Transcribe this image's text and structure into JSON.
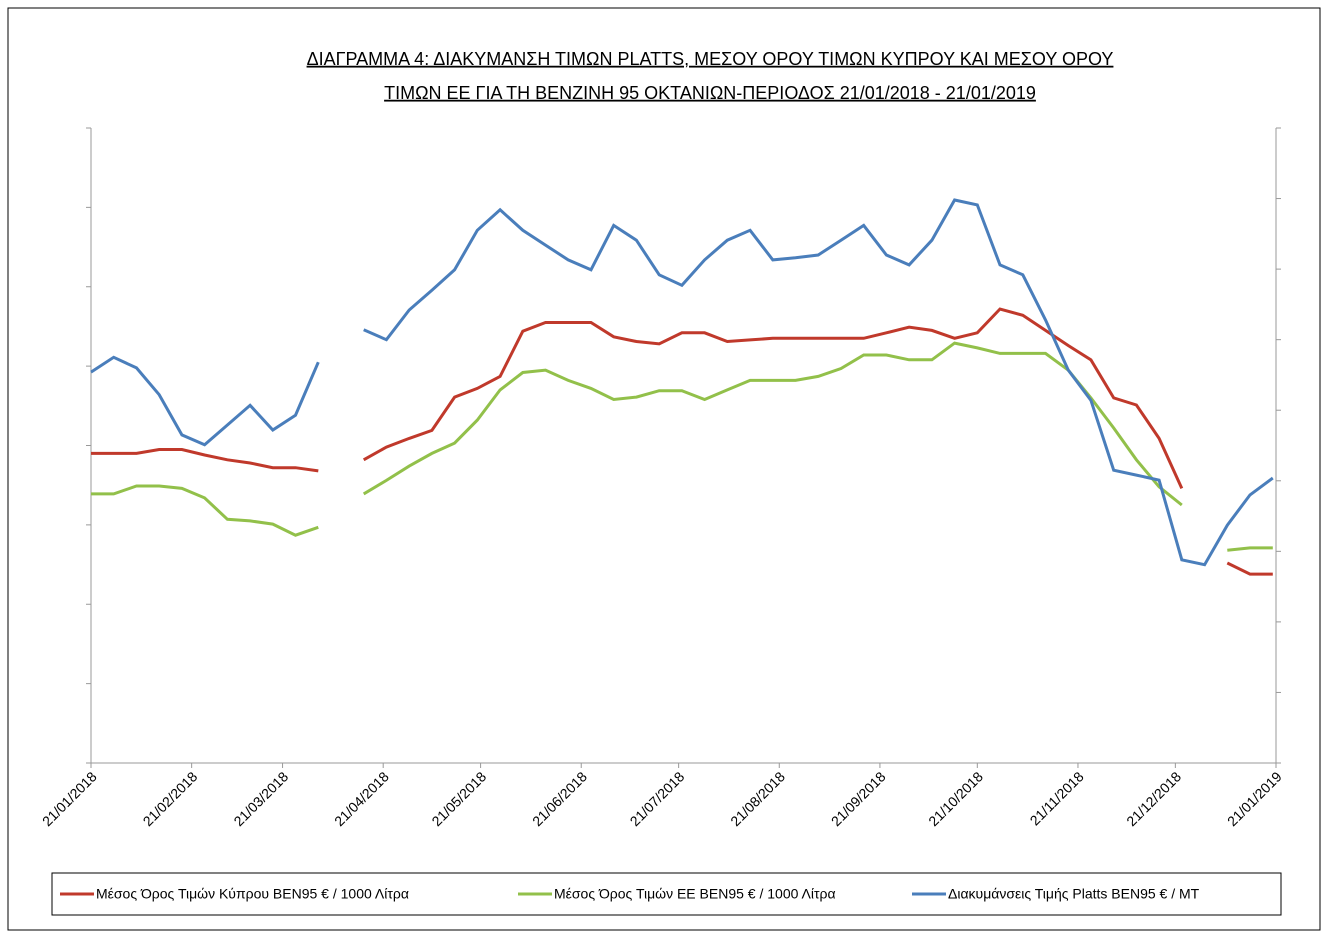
{
  "chart_data": {
    "type": "line",
    "title": [
      "ΔΙΑΓΡΑΜΜΑ 4: ΔΙΑΚΥΜΑΝΣΗ ΤΙΜΩΝ PLATTS, ΜΕΣΟΥ ΟΡΟΥ ΤΙΜΩΝ ΚΥΠΡΟΥ ΚΑΙ ΜΕΣΟΥ ΟΡΟΥ",
      "ΤΙΜΩΝ ΕΕ ΓΙΑ ΤΗ ΒΕΝΖΙΝΗ 95 ΟΚΤΑΝΙΩΝ-ΠΕΡΙΟΔΟΣ 21/01/2018 - 21/01/2019"
    ],
    "x": [
      "21/01/2018",
      "28/01/2018",
      "04/02/2018",
      "11/02/2018",
      "18/02/2018",
      "25/02/2018",
      "04/03/2018",
      "11/03/2018",
      "18/03/2018",
      "25/03/2018",
      "01/04/2018",
      "08/04/2018",
      "15/04/2018",
      "22/04/2018",
      "29/04/2018",
      "06/05/2018",
      "13/05/2018",
      "20/05/2018",
      "27/05/2018",
      "03/06/2018",
      "10/06/2018",
      "17/06/2018",
      "24/06/2018",
      "01/07/2018",
      "08/07/2018",
      "15/07/2018",
      "22/07/2018",
      "29/07/2018",
      "05/08/2018",
      "12/08/2018",
      "19/08/2018",
      "26/08/2018",
      "02/09/2018",
      "09/09/2018",
      "16/09/2018",
      "23/09/2018",
      "30/09/2018",
      "07/10/2018",
      "14/10/2018",
      "21/10/2018",
      "28/10/2018",
      "04/11/2018",
      "11/11/2018",
      "18/11/2018",
      "25/11/2018",
      "02/12/2018",
      "09/12/2018",
      "16/12/2018",
      "23/12/2018",
      "30/12/2018",
      "06/01/2019",
      "13/01/2019",
      "20/01/2019"
    ],
    "series": [
      {
        "name": "Μέσος Όρος Τιμών Κύπρου ΒΕΝ95 € / 1000  Λίτρα",
        "color": "#c0392b",
        "values": [
          3.9,
          3.9,
          3.9,
          3.95,
          3.95,
          3.88,
          3.82,
          3.78,
          3.72,
          3.72,
          3.68,
          null,
          3.82,
          3.98,
          4.09,
          4.19,
          4.61,
          4.72,
          4.87,
          5.44,
          5.55,
          5.55,
          5.55,
          5.37,
          5.31,
          5.28,
          5.42,
          5.42,
          5.31,
          5.33,
          5.35,
          5.35,
          5.35,
          5.35,
          5.35,
          5.42,
          5.49,
          5.45,
          5.35,
          5.42,
          5.72,
          5.64,
          5.45,
          5.26,
          5.08,
          4.6,
          4.51,
          4.09,
          3.46,
          null,
          2.52,
          2.38,
          2.38
        ]
      },
      {
        "name": "Μέσος Όρος Τιμών ΕΕ ΒΕΝ95 € / 1000  Λίτρα",
        "color": "#92c04a",
        "values": [
          3.39,
          3.39,
          3.49,
          3.49,
          3.46,
          3.34,
          3.07,
          3.05,
          3.01,
          2.87,
          2.97,
          null,
          3.39,
          3.56,
          3.74,
          3.9,
          4.03,
          4.32,
          4.7,
          4.92,
          4.95,
          4.82,
          4.72,
          4.58,
          4.61,
          4.69,
          4.69,
          4.58,
          4.7,
          4.82,
          4.82,
          4.82,
          4.87,
          4.97,
          5.14,
          5.14,
          5.08,
          5.08,
          5.29,
          5.23,
          5.16,
          5.16,
          5.16,
          4.95,
          4.6,
          4.22,
          3.82,
          3.48,
          3.25,
          null,
          2.68,
          2.71,
          2.71
        ]
      },
      {
        "name": "Διακυμάνσεις Τιμής Platts ΒΕΝ95 € / MT",
        "color": "#4a7ebb",
        "axis": "y2",
        "values": [
          5.54,
          5.75,
          5.6,
          5.22,
          4.65,
          4.51,
          4.79,
          5.07,
          4.72,
          4.93,
          5.68,
          null,
          6.14,
          6.0,
          6.42,
          6.7,
          6.99,
          7.55,
          7.84,
          7.55,
          7.34,
          7.13,
          6.99,
          7.62,
          7.41,
          6.92,
          6.77,
          7.13,
          7.41,
          7.55,
          7.13,
          7.16,
          7.2,
          7.41,
          7.62,
          7.2,
          7.06,
          7.41,
          7.98,
          7.91,
          7.06,
          6.92,
          6.28,
          5.57,
          5.14,
          4.15,
          4.08,
          4.01,
          2.88,
          2.81,
          3.37,
          3.8,
          4.04
        ]
      }
    ],
    "xlim": [
      "21/01/2018",
      "21/01/2019"
    ],
    "xticks": [
      "21/01/2018",
      "21/02/2018",
      "21/03/2018",
      "21/04/2018",
      "21/05/2018",
      "21/06/2018",
      "21/07/2018",
      "21/08/2018",
      "21/09/2018",
      "21/10/2018",
      "21/11/2018",
      "21/12/2018",
      "21/01/2019"
    ],
    "ylim": [
      0,
      8
    ],
    "yticks": [
      0,
      1,
      2,
      3,
      4,
      5,
      6,
      7,
      8
    ],
    "y2lim": [
      0,
      9
    ],
    "y2ticks": [
      0,
      1,
      2,
      3,
      4,
      5,
      6,
      7,
      8,
      9
    ],
    "grid": false,
    "legend": "bottom"
  }
}
